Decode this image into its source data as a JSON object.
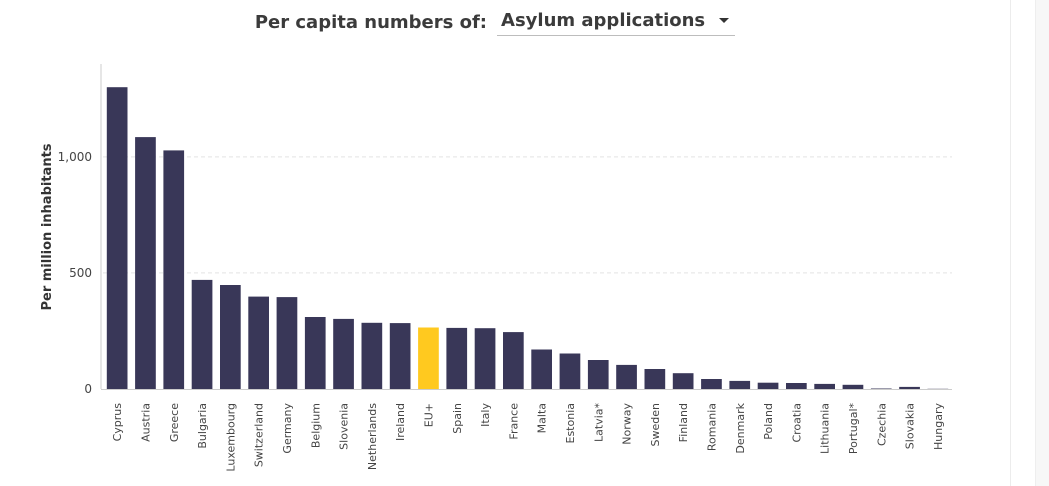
{
  "header": {
    "label": "Per capita numbers of:",
    "selector_value": "Asylum applications"
  },
  "colors": {
    "bar": "#393758",
    "highlight": "#ffc91f",
    "grid": "#e3e3e3"
  },
  "chart_data": {
    "type": "bar",
    "title": "",
    "xlabel": "",
    "ylabel": "Per million inhabitants",
    "ylim": [
      0,
      1400
    ],
    "yticks": [
      0,
      500,
      1000
    ],
    "ytick_labels": [
      "0",
      "500",
      "1,000"
    ],
    "grid": true,
    "highlight_category": "EU+",
    "categories": [
      "Cyprus",
      "Austria",
      "Greece",
      "Bulgaria",
      "Luxembourg",
      "Switzerland",
      "Germany",
      "Belgium",
      "Slovenia",
      "Netherlands",
      "Ireland",
      "EU+",
      "Spain",
      "Italy",
      "France",
      "Malta",
      "Estonia",
      "Latvia*",
      "Norway",
      "Sweden",
      "Finland",
      "Romania",
      "Denmark",
      "Poland",
      "Croatia",
      "Lithuania",
      "Portugal*",
      "Czechia",
      "Slovakia",
      "Hungary"
    ],
    "values": [
      1300,
      1085,
      1028,
      470,
      448,
      398,
      396,
      310,
      302,
      285,
      284,
      265,
      263,
      262,
      245,
      170,
      153,
      125,
      104,
      86,
      68,
      43,
      35,
      27,
      26,
      22,
      18,
      2,
      9,
      1
    ]
  }
}
